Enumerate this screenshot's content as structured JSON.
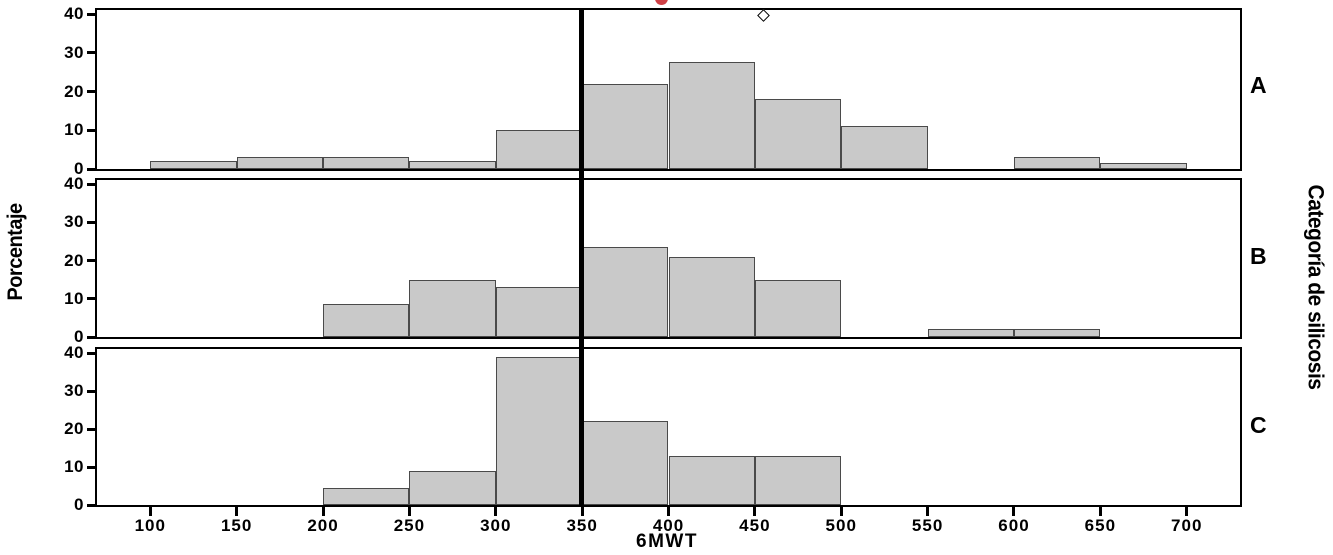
{
  "chart_data": {
    "type": "bar",
    "subtype": "histogram-panels",
    "title": "",
    "xlabel": "6MWT",
    "ylabel": "Porcentaje",
    "panel_axis_label": "Categoría de silicosis",
    "bin_width": 50,
    "xlim": [
      68,
      732
    ],
    "ylim": [
      0,
      42
    ],
    "x_ticks": [
      100,
      150,
      200,
      250,
      300,
      350,
      400,
      450,
      500,
      550,
      600,
      650,
      700
    ],
    "y_ticks": [
      0,
      10,
      20,
      30,
      40
    ],
    "reference_line_x": 350,
    "grid": false,
    "legend_position": "none",
    "panels": [
      {
        "label": "A",
        "bars": [
          {
            "bin_start": 100,
            "bin_end": 150,
            "pct": 2
          },
          {
            "bin_start": 150,
            "bin_end": 200,
            "pct": 3
          },
          {
            "bin_start": 200,
            "bin_end": 250,
            "pct": 3
          },
          {
            "bin_start": 250,
            "bin_end": 300,
            "pct": 2
          },
          {
            "bin_start": 300,
            "bin_end": 350,
            "pct": 10
          },
          {
            "bin_start": 350,
            "bin_end": 400,
            "pct": 22
          },
          {
            "bin_start": 400,
            "bin_end": 450,
            "pct": 27.5
          },
          {
            "bin_start": 450,
            "bin_end": 500,
            "pct": 18
          },
          {
            "bin_start": 500,
            "bin_end": 550,
            "pct": 11
          },
          {
            "bin_start": 600,
            "bin_end": 650,
            "pct": 3
          },
          {
            "bin_start": 650,
            "bin_end": 700,
            "pct": 1.5
          }
        ],
        "outlier_points": [
          {
            "x": 455,
            "pct": 39.5
          }
        ]
      },
      {
        "label": "B",
        "bars": [
          {
            "bin_start": 200,
            "bin_end": 250,
            "pct": 8.5
          },
          {
            "bin_start": 250,
            "bin_end": 300,
            "pct": 15
          },
          {
            "bin_start": 300,
            "bin_end": 350,
            "pct": 13
          },
          {
            "bin_start": 350,
            "bin_end": 400,
            "pct": 23.5
          },
          {
            "bin_start": 400,
            "bin_end": 450,
            "pct": 21
          },
          {
            "bin_start": 450,
            "bin_end": 500,
            "pct": 15
          },
          {
            "bin_start": 550,
            "bin_end": 600,
            "pct": 2
          },
          {
            "bin_start": 600,
            "bin_end": 650,
            "pct": 2
          }
        ],
        "outlier_points": []
      },
      {
        "label": "C",
        "bars": [
          {
            "bin_start": 200,
            "bin_end": 250,
            "pct": 4.5
          },
          {
            "bin_start": 250,
            "bin_end": 300,
            "pct": 9
          },
          {
            "bin_start": 300,
            "bin_end": 350,
            "pct": 39
          },
          {
            "bin_start": 350,
            "bin_end": 400,
            "pct": 22
          },
          {
            "bin_start": 400,
            "bin_end": 450,
            "pct": 13
          },
          {
            "bin_start": 450,
            "bin_end": 500,
            "pct": 13
          }
        ],
        "outlier_points": []
      }
    ],
    "colors": {
      "bar_fill": "#c9c9c9",
      "bar_border": "#4a4a4a",
      "frame": "#000000",
      "reference_line": "#000000",
      "cropped_red_mark": "#cf4046"
    },
    "cropped_red_mark_at_top": true
  }
}
